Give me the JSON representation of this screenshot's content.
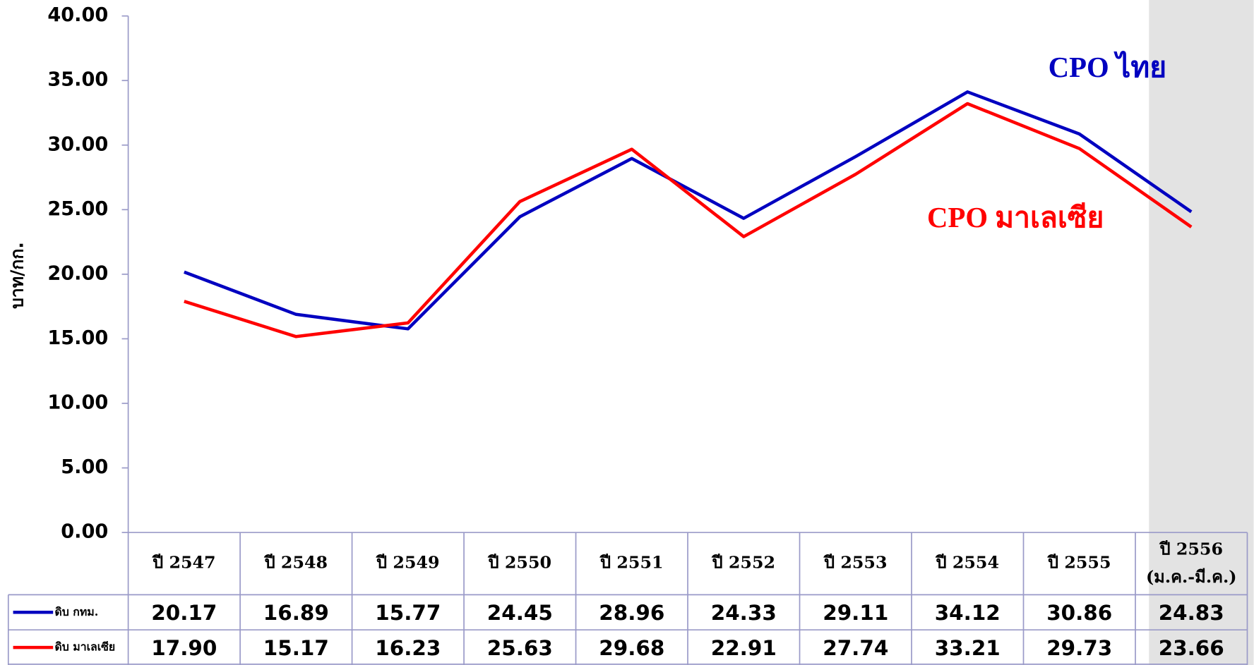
{
  "chart_data": {
    "type": "line",
    "y_label": "บาท/กก.",
    "categories": [
      "ปี 2547",
      "ปี 2548",
      "ปี 2549",
      "ปี 2550",
      "ปี 2551",
      "ปี 2552",
      "ปี 2553",
      "ปี 2554",
      "ปี 2555",
      "ปี 2556"
    ],
    "last_category_note": "(ม.ค.-มี.ค.)",
    "series": [
      {
        "name": "ดิบ กทม.",
        "color": "#0000c0",
        "values": [
          20.17,
          16.89,
          15.77,
          24.45,
          28.96,
          24.33,
          29.11,
          34.12,
          30.86,
          24.83
        ],
        "value_labels": [
          "20.17",
          "16.89",
          "15.77",
          "24.45",
          "28.96",
          "24.33",
          "29.11",
          "34.12",
          "30.86",
          "24.83"
        ]
      },
      {
        "name": "ดิบ มาเลเซีย",
        "color": "#ff0000",
        "values": [
          17.9,
          15.17,
          16.23,
          25.63,
          29.68,
          22.91,
          27.74,
          33.21,
          29.73,
          23.66
        ],
        "value_labels": [
          "17.90",
          "15.17",
          "16.23",
          "25.63",
          "29.68",
          "22.91",
          "27.74",
          "33.21",
          "29.73",
          "23.66"
        ]
      }
    ],
    "annotations": [
      {
        "text": "CPO ไทย",
        "color": "#0000c0"
      },
      {
        "text": "CPO มาเลเซีย",
        "color": "#ff0000"
      }
    ],
    "ylim": [
      0,
      40
    ],
    "yticks": [
      {
        "value": 0,
        "label": "0.00"
      },
      {
        "value": 5,
        "label": "5.00"
      },
      {
        "value": 10,
        "label": "10.00"
      },
      {
        "value": 15,
        "label": "15.00"
      },
      {
        "value": 20,
        "label": "20.00"
      },
      {
        "value": 25,
        "label": "25.00"
      },
      {
        "value": 30,
        "label": "30.00"
      },
      {
        "value": 35,
        "label": "35.00"
      },
      {
        "value": 40,
        "label": "40.00"
      }
    ]
  }
}
